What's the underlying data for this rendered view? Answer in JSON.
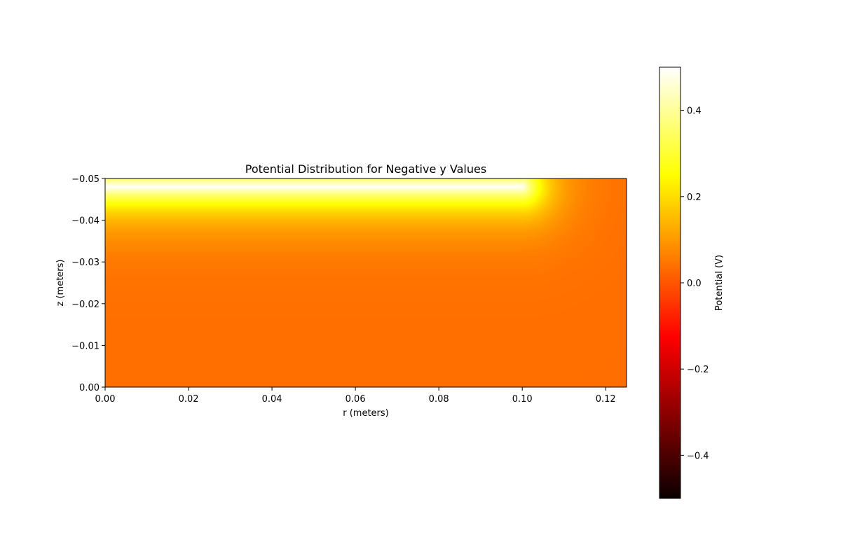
{
  "chart_data": {
    "type": "heatmap",
    "title": "Potential Distribution for Negative y Values",
    "xlabel": "r (meters)",
    "ylabel": "z (meters)",
    "xlim": [
      0.0,
      0.125
    ],
    "ylim": [
      0.0,
      -0.05
    ],
    "xticks": [
      0.0,
      0.02,
      0.04,
      0.06,
      0.08,
      0.1,
      0.12
    ],
    "xtick_labels": [
      "0.00",
      "0.02",
      "0.04",
      "0.06",
      "0.08",
      "0.10",
      "0.12"
    ],
    "yticks": [
      -0.05,
      -0.04,
      -0.03,
      -0.02,
      -0.01,
      0.0
    ],
    "ytick_labels": [
      "−0.05",
      "−0.04",
      "−0.03",
      "−0.02",
      "−0.01",
      "0.00"
    ],
    "colormap": "hot",
    "colorbar": {
      "label": "Potential (V)",
      "range": [
        -0.5,
        0.5
      ],
      "ticks": [
        0.4,
        0.2,
        0.0,
        -0.2,
        -0.4
      ],
      "tick_labels": [
        "0.4",
        "0.2",
        "0.0",
        "−0.2",
        "−0.4"
      ]
    },
    "features": {
      "electrode_z": -0.048,
      "electrode_r_max": 0.1,
      "electrode_potential": 0.5,
      "background_potential": 0.03
    }
  }
}
